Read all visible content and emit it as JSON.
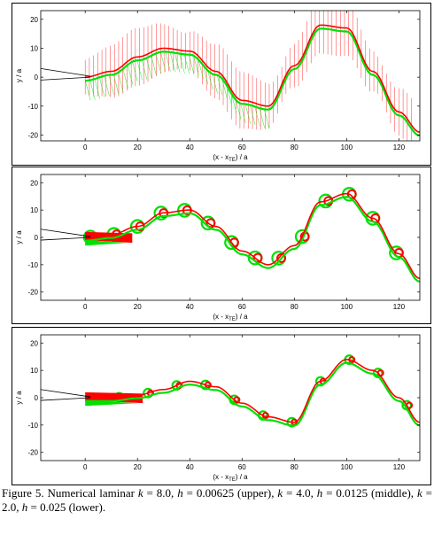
{
  "caption": {
    "prefix": "Figure 5. Numerical laminar ",
    "k1": "k",
    "eq1": " = 8.0, ",
    "h1": "h",
    "v1": " = 0.00625 (upper), ",
    "k2": "k",
    "eq2": " = 4.0, ",
    "h2": "h",
    "v2": " = 0.0125 (middle), ",
    "k3": "k",
    "eq3": " = 2.0, ",
    "h3": "h",
    "v3": " = 0.025 (lower)."
  },
  "colors": {
    "series_a": "#ff0000",
    "series_b": "#00e000",
    "airfoil": "#000000"
  },
  "chart_data": [
    {
      "type": "scatter",
      "panel": "upper",
      "xlabel": "(x - x",
      "xlabel_sub": "TE",
      "xlabel_suffix": ") / a",
      "ylabel": "y / a",
      "xlim": [
        -17,
        128
      ],
      "ylim": [
        -22,
        23
      ],
      "xticks": [
        "0",
        "20",
        "40",
        "60",
        "80",
        "100",
        "120"
      ],
      "yticks": [
        "20",
        "10",
        "0",
        "-10",
        "-20"
      ],
      "params": {
        "k": 8.0,
        "h": 0.00625
      },
      "wake_centerline": {
        "x": [
          0,
          10,
          20,
          30,
          40,
          50,
          60,
          70,
          80,
          90,
          100,
          110,
          120,
          128
        ],
        "y": [
          0,
          2,
          7,
          10,
          9,
          2,
          -8,
          -10,
          4,
          18,
          17,
          2,
          -12,
          -19
        ]
      }
    },
    {
      "type": "scatter",
      "panel": "middle",
      "xlabel": "(x - x",
      "xlabel_sub": "TE",
      "xlabel_suffix": ") / a",
      "ylabel": "y / a",
      "xlim": [
        -17,
        128
      ],
      "ylim": [
        -23,
        23
      ],
      "xticks": [
        "0",
        "20",
        "40",
        "60",
        "80",
        "100",
        "120"
      ],
      "yticks": [
        "20",
        "10",
        "0",
        "-10",
        "-20"
      ],
      "params": {
        "k": 4.0,
        "h": 0.0125
      },
      "wake_centerline": {
        "x": [
          0,
          10,
          20,
          30,
          40,
          50,
          60,
          70,
          80,
          90,
          100,
          110,
          120,
          128
        ],
        "y": [
          0,
          1,
          4,
          9,
          10,
          4,
          -5,
          -10,
          -3,
          13,
          16,
          7,
          -6,
          -15
        ]
      }
    },
    {
      "type": "scatter",
      "panel": "lower",
      "xlabel": "(x - x",
      "xlabel_sub": "TE",
      "xlabel_suffix": ") / a",
      "ylabel": "y / a",
      "xlim": [
        -17,
        128
      ],
      "ylim": [
        -23,
        23
      ],
      "xticks": [
        "0",
        "20",
        "40",
        "60",
        "80",
        "100",
        "120"
      ],
      "yticks": [
        "20",
        "10",
        "0",
        "-10",
        "-20"
      ],
      "params": {
        "k": 2.0,
        "h": 0.025
      },
      "wake_centerline": {
        "x": [
          0,
          10,
          20,
          30,
          40,
          50,
          60,
          70,
          80,
          90,
          100,
          110,
          120,
          128
        ],
        "y": [
          0,
          0,
          1,
          3,
          6,
          4,
          -2,
          -7,
          -9,
          6,
          14,
          10,
          0,
          -9
        ]
      }
    }
  ]
}
